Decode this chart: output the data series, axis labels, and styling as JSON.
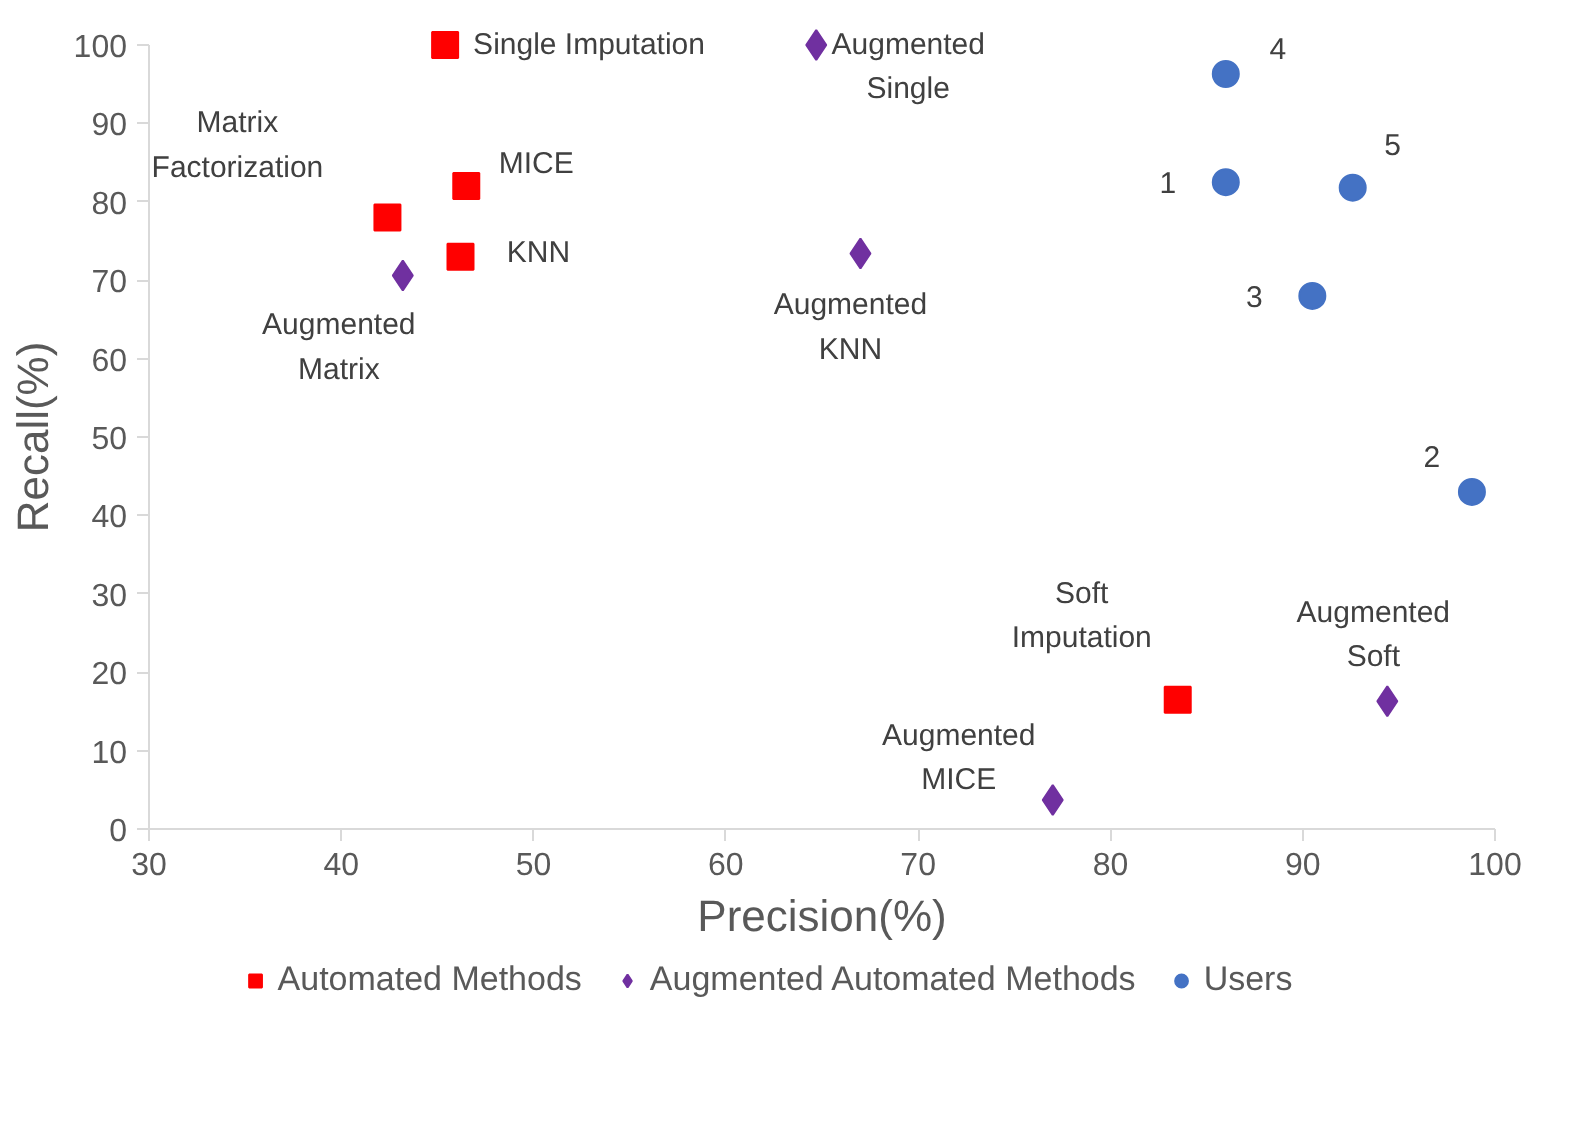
{
  "chart_data": {
    "type": "scatter",
    "xlabel": "Precision(%)",
    "ylabel": "Recall(%)",
    "xlim": [
      30,
      100
    ],
    "xticks": [
      30,
      40,
      50,
      60,
      70,
      80,
      90,
      100
    ],
    "ylim": [
      0,
      100
    ],
    "yticks": [
      0,
      10,
      20,
      30,
      40,
      50,
      60,
      70,
      80,
      90,
      100
    ],
    "grid": false,
    "legend": "bottom",
    "series": [
      {
        "name": "Automated Methods",
        "color": "#ff0000",
        "marker": "square",
        "x": [
          45.4,
          42.4,
          46.5,
          46.2,
          83.5
        ],
        "values": [
          100,
          78,
          82,
          73,
          16.5
        ]
      },
      {
        "name": "Augmented Automated Methods",
        "color": "#7030a0",
        "marker": "diamond",
        "x": [
          64.7,
          43.2,
          67.0,
          77.0,
          94.4
        ],
        "values": [
          100,
          70.6,
          73.4,
          3.7,
          16.3
        ]
      },
      {
        "name": "Users",
        "color": "#4472c4",
        "marker": "circle",
        "x": [
          86.0,
          98.8,
          90.5,
          86.0,
          92.6
        ],
        "values": [
          82.5,
          43,
          68,
          96.3,
          81.8
        ]
      }
    ],
    "annotations": [
      {
        "text": "Single Imputation",
        "x": 45.4,
        "y": 100
      },
      {
        "text": "Matrix\nFactorization",
        "x": 42.4,
        "y": 78
      },
      {
        "text": "MICE",
        "x": 46.5,
        "y": 82
      },
      {
        "text": "KNN",
        "x": 46.2,
        "y": 73
      },
      {
        "text": "Soft\nImputation",
        "x": 83.5,
        "y": 16.5
      },
      {
        "text": "Augmented\nSingle",
        "x": 64.7,
        "y": 100
      },
      {
        "text": "Augmented\nMatrix",
        "x": 43.2,
        "y": 70.6
      },
      {
        "text": "Augmented\nKNN",
        "x": 67.0,
        "y": 73.4
      },
      {
        "text": "Augmented\nMICE",
        "x": 77.0,
        "y": 3.7
      },
      {
        "text": "Augmented\nSoft",
        "x": 94.4,
        "y": 16.3
      },
      {
        "text": "1",
        "x": 86.0,
        "y": 82.5
      },
      {
        "text": "2",
        "x": 98.8,
        "y": 43
      },
      {
        "text": "3",
        "x": 90.5,
        "y": 68
      },
      {
        "text": "4",
        "x": 86.0,
        "y": 96.3
      },
      {
        "text": "5",
        "x": 92.6,
        "y": 81.8
      }
    ]
  }
}
